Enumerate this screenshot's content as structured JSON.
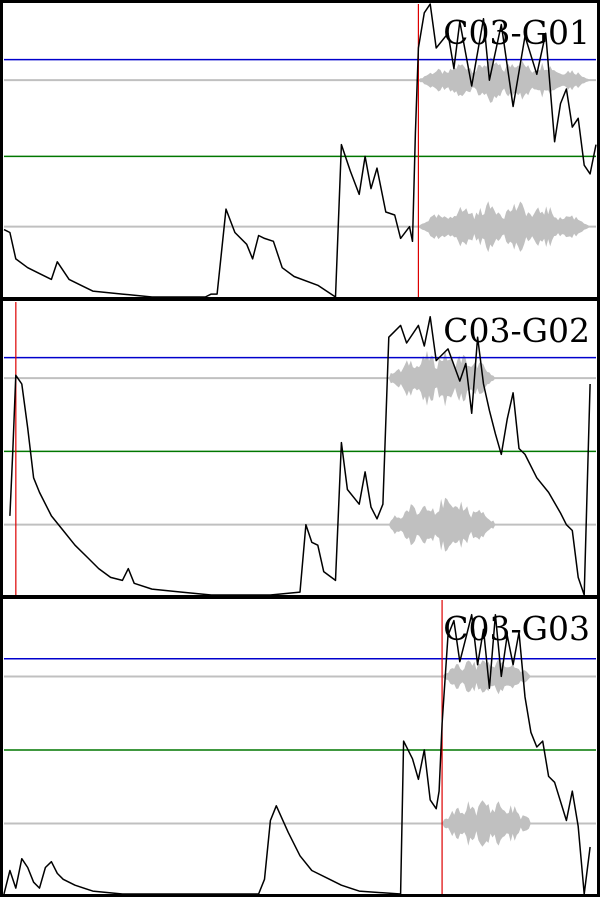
{
  "colors": {
    "envelope": "#000000",
    "waveform": "#c0c0c0",
    "baseline": "#c0c0c0",
    "upper_threshold": "#0000cc",
    "lower_threshold": "#007700",
    "marker": "#dd0000",
    "frame": "#000000"
  },
  "chart_data": [
    {
      "type": "line",
      "title": "C03-G01",
      "ylim": [
        0,
        1
      ],
      "xlim": [
        0,
        1
      ],
      "upper_threshold": 0.81,
      "lower_threshold": 0.48,
      "marker_x": 0.7,
      "waveform": {
        "x_start": 0.7,
        "x_end": 0.99,
        "top_amp": 0.08,
        "bottom_amp": 0.09
      },
      "envelope": [
        [
          0.0,
          0.23
        ],
        [
          0.01,
          0.22
        ],
        [
          0.02,
          0.13
        ],
        [
          0.04,
          0.1
        ],
        [
          0.06,
          0.08
        ],
        [
          0.08,
          0.06
        ],
        [
          0.09,
          0.12
        ],
        [
          0.11,
          0.06
        ],
        [
          0.13,
          0.04
        ],
        [
          0.15,
          0.02
        ],
        [
          0.2,
          0.01
        ],
        [
          0.25,
          0.0
        ],
        [
          0.34,
          0.0
        ],
        [
          0.35,
          0.01
        ],
        [
          0.36,
          0.01
        ],
        [
          0.375,
          0.3
        ],
        [
          0.39,
          0.22
        ],
        [
          0.41,
          0.18
        ],
        [
          0.42,
          0.13
        ],
        [
          0.43,
          0.21
        ],
        [
          0.44,
          0.2
        ],
        [
          0.455,
          0.19
        ],
        [
          0.47,
          0.1
        ],
        [
          0.49,
          0.07
        ],
        [
          0.53,
          0.04
        ],
        [
          0.56,
          0.0
        ],
        [
          0.57,
          0.52
        ],
        [
          0.585,
          0.43
        ],
        [
          0.6,
          0.35
        ],
        [
          0.61,
          0.48
        ],
        [
          0.62,
          0.37
        ],
        [
          0.63,
          0.44
        ],
        [
          0.645,
          0.29
        ],
        [
          0.66,
          0.28
        ],
        [
          0.67,
          0.2
        ],
        [
          0.685,
          0.24
        ],
        [
          0.69,
          0.19
        ],
        [
          0.695,
          0.56
        ],
        [
          0.7,
          0.85
        ],
        [
          0.71,
          0.97
        ],
        [
          0.72,
          1.0
        ],
        [
          0.73,
          0.85
        ],
        [
          0.75,
          0.9
        ],
        [
          0.76,
          0.78
        ],
        [
          0.77,
          0.94
        ],
        [
          0.79,
          0.72
        ],
        [
          0.81,
          0.95
        ],
        [
          0.82,
          0.74
        ],
        [
          0.84,
          0.93
        ],
        [
          0.86,
          0.65
        ],
        [
          0.88,
          0.89
        ],
        [
          0.9,
          0.76
        ],
        [
          0.915,
          0.9
        ],
        [
          0.93,
          0.53
        ],
        [
          0.94,
          0.66
        ],
        [
          0.95,
          0.71
        ],
        [
          0.96,
          0.58
        ],
        [
          0.97,
          0.61
        ],
        [
          0.98,
          0.45
        ],
        [
          0.99,
          0.42
        ],
        [
          1.0,
          0.52
        ]
      ]
    },
    {
      "type": "line",
      "title": "C03-G02",
      "ylim": [
        0,
        1
      ],
      "xlim": [
        0,
        1
      ],
      "upper_threshold": 0.81,
      "lower_threshold": 0.49,
      "marker_x": 0.02,
      "waveform": {
        "x_start": 0.65,
        "x_end": 0.83,
        "top_amp": 0.1,
        "bottom_amp": 0.1
      },
      "envelope": [
        [
          0.01,
          0.27
        ],
        [
          0.015,
          0.5
        ],
        [
          0.02,
          0.75
        ],
        [
          0.03,
          0.72
        ],
        [
          0.04,
          0.57
        ],
        [
          0.05,
          0.4
        ],
        [
          0.06,
          0.35
        ],
        [
          0.08,
          0.27
        ],
        [
          0.1,
          0.22
        ],
        [
          0.12,
          0.17
        ],
        [
          0.14,
          0.13
        ],
        [
          0.16,
          0.09
        ],
        [
          0.18,
          0.06
        ],
        [
          0.2,
          0.05
        ],
        [
          0.21,
          0.09
        ],
        [
          0.22,
          0.04
        ],
        [
          0.25,
          0.02
        ],
        [
          0.3,
          0.01
        ],
        [
          0.35,
          0.0
        ],
        [
          0.4,
          0.0
        ],
        [
          0.45,
          0.0
        ],
        [
          0.5,
          0.01
        ],
        [
          0.51,
          0.24
        ],
        [
          0.52,
          0.18
        ],
        [
          0.53,
          0.17
        ],
        [
          0.54,
          0.08
        ],
        [
          0.56,
          0.05
        ],
        [
          0.57,
          0.52
        ],
        [
          0.58,
          0.36
        ],
        [
          0.6,
          0.31
        ],
        [
          0.61,
          0.42
        ],
        [
          0.62,
          0.3
        ],
        [
          0.63,
          0.26
        ],
        [
          0.64,
          0.31
        ],
        [
          0.65,
          0.88
        ],
        [
          0.66,
          0.9
        ],
        [
          0.67,
          0.92
        ],
        [
          0.68,
          0.86
        ],
        [
          0.7,
          0.92
        ],
        [
          0.71,
          0.85
        ],
        [
          0.72,
          0.95
        ],
        [
          0.73,
          0.8
        ],
        [
          0.75,
          0.84
        ],
        [
          0.77,
          0.73
        ],
        [
          0.78,
          0.79
        ],
        [
          0.79,
          0.62
        ],
        [
          0.8,
          0.88
        ],
        [
          0.81,
          0.72
        ],
        [
          0.82,
          0.63
        ],
        [
          0.83,
          0.55
        ],
        [
          0.84,
          0.48
        ],
        [
          0.85,
          0.6
        ],
        [
          0.86,
          0.69
        ],
        [
          0.87,
          0.5
        ],
        [
          0.88,
          0.48
        ],
        [
          0.9,
          0.4
        ],
        [
          0.92,
          0.35
        ],
        [
          0.94,
          0.28
        ],
        [
          0.95,
          0.24
        ],
        [
          0.96,
          0.22
        ],
        [
          0.97,
          0.06
        ],
        [
          0.98,
          0.0
        ],
        [
          0.99,
          0.72
        ]
      ]
    },
    {
      "type": "line",
      "title": "C03-G03",
      "ylim": [
        0,
        1
      ],
      "xlim": [
        0,
        1
      ],
      "upper_threshold": 0.8,
      "lower_threshold": 0.49,
      "marker_x": 0.74,
      "waveform": {
        "x_start": 0.74,
        "x_end": 0.89,
        "top_amp": 0.07,
        "bottom_amp": 0.09
      },
      "envelope": [
        [
          0.0,
          0.0
        ],
        [
          0.01,
          0.08
        ],
        [
          0.02,
          0.02
        ],
        [
          0.03,
          0.12
        ],
        [
          0.04,
          0.09
        ],
        [
          0.05,
          0.04
        ],
        [
          0.06,
          0.02
        ],
        [
          0.07,
          0.09
        ],
        [
          0.08,
          0.11
        ],
        [
          0.09,
          0.07
        ],
        [
          0.1,
          0.05
        ],
        [
          0.12,
          0.03
        ],
        [
          0.15,
          0.01
        ],
        [
          0.2,
          0.0
        ],
        [
          0.3,
          0.0
        ],
        [
          0.43,
          0.0
        ],
        [
          0.44,
          0.05
        ],
        [
          0.45,
          0.25
        ],
        [
          0.46,
          0.3
        ],
        [
          0.48,
          0.21
        ],
        [
          0.5,
          0.13
        ],
        [
          0.52,
          0.08
        ],
        [
          0.55,
          0.05
        ],
        [
          0.57,
          0.03
        ],
        [
          0.6,
          0.01
        ],
        [
          0.67,
          0.0
        ],
        [
          0.675,
          0.52
        ],
        [
          0.69,
          0.46
        ],
        [
          0.7,
          0.39
        ],
        [
          0.71,
          0.49
        ],
        [
          0.72,
          0.32
        ],
        [
          0.73,
          0.29
        ],
        [
          0.735,
          0.35
        ],
        [
          0.74,
          0.58
        ],
        [
          0.75,
          0.88
        ],
        [
          0.76,
          0.93
        ],
        [
          0.77,
          0.79
        ],
        [
          0.78,
          0.87
        ],
        [
          0.79,
          0.95
        ],
        [
          0.8,
          0.78
        ],
        [
          0.81,
          0.9
        ],
        [
          0.82,
          0.7
        ],
        [
          0.83,
          0.95
        ],
        [
          0.84,
          0.74
        ],
        [
          0.85,
          0.88
        ],
        [
          0.86,
          0.78
        ],
        [
          0.87,
          0.89
        ],
        [
          0.88,
          0.67
        ],
        [
          0.89,
          0.55
        ],
        [
          0.9,
          0.5
        ],
        [
          0.91,
          0.52
        ],
        [
          0.92,
          0.4
        ],
        [
          0.93,
          0.38
        ],
        [
          0.95,
          0.25
        ],
        [
          0.96,
          0.35
        ],
        [
          0.97,
          0.23
        ],
        [
          0.98,
          0.0
        ],
        [
          0.99,
          0.16
        ]
      ]
    }
  ]
}
